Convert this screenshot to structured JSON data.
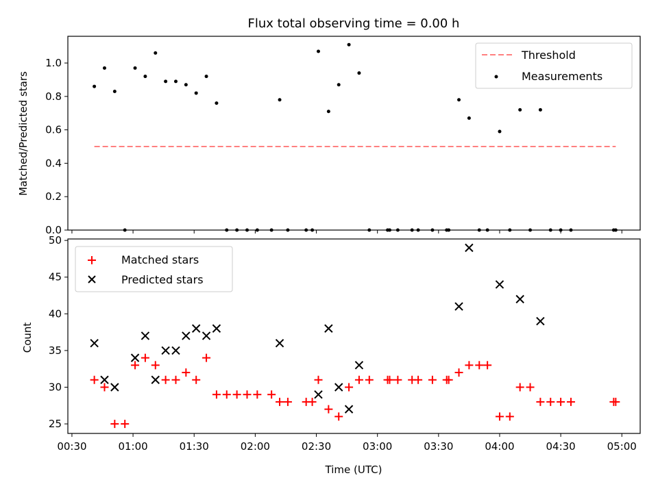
{
  "chart_data": [
    {
      "type": "scatter",
      "title": "Flux total observing time = 0.00 h",
      "ylabel": "Matched/Predicted stars",
      "ylim": [
        0,
        1.16
      ],
      "yticks": [
        "0.0",
        "0.2",
        "0.4",
        "0.6",
        "0.8",
        "1.0"
      ],
      "ytick_values": [
        0.0,
        0.2,
        0.4,
        0.6,
        0.8,
        1.0
      ],
      "legend_position": "top-right",
      "threshold": {
        "name": "Threshold",
        "value": 0.5,
        "x_range": [
          "00:41",
          "04:57"
        ],
        "color": "#ff7f7f"
      },
      "series": [
        {
          "name": "Measurements",
          "color": "#000000",
          "points": [
            [
              "00:41",
              0.86
            ],
            [
              "00:46",
              0.97
            ],
            [
              "00:51",
              0.83
            ],
            [
              "00:56",
              0.0
            ],
            [
              "01:01",
              0.97
            ],
            [
              "01:06",
              0.92
            ],
            [
              "01:11",
              1.06
            ],
            [
              "01:16",
              0.89
            ],
            [
              "01:21",
              0.89
            ],
            [
              "01:26",
              0.87
            ],
            [
              "01:31",
              0.82
            ],
            [
              "01:36",
              0.92
            ],
            [
              "01:41",
              0.76
            ],
            [
              "01:46",
              0.0
            ],
            [
              "01:51",
              0.0
            ],
            [
              "01:56",
              0.0
            ],
            [
              "02:01",
              0.0
            ],
            [
              "02:08",
              0.0
            ],
            [
              "02:12",
              0.78
            ],
            [
              "02:16",
              0.0
            ],
            [
              "02:25",
              0.0
            ],
            [
              "02:28",
              0.0
            ],
            [
              "02:31",
              1.07
            ],
            [
              "02:36",
              0.71
            ],
            [
              "02:41",
              0.87
            ],
            [
              "02:46",
              1.11
            ],
            [
              "02:51",
              0.94
            ],
            [
              "02:56",
              0.0
            ],
            [
              "03:05",
              0.0
            ],
            [
              "03:06",
              0.0
            ],
            [
              "03:10",
              0.0
            ],
            [
              "03:17",
              0.0
            ],
            [
              "03:20",
              0.0
            ],
            [
              "03:27",
              0.0
            ],
            [
              "03:34",
              0.0
            ],
            [
              "03:35",
              0.0
            ],
            [
              "03:40",
              0.78
            ],
            [
              "03:45",
              0.67
            ],
            [
              "03:50",
              0.0
            ],
            [
              "03:54",
              0.0
            ],
            [
              "04:00",
              0.59
            ],
            [
              "04:05",
              0.0
            ],
            [
              "04:10",
              0.72
            ],
            [
              "04:15",
              0.0
            ],
            [
              "04:20",
              0.72
            ],
            [
              "04:25",
              0.0
            ],
            [
              "04:30",
              0.0
            ],
            [
              "04:35",
              0.0
            ],
            [
              "04:56",
              0.0
            ],
            [
              "04:57",
              0.0
            ]
          ]
        }
      ]
    },
    {
      "type": "scatter",
      "xlabel": "Time (UTC)",
      "ylabel": "Count",
      "ylim": [
        23.7,
        50.2
      ],
      "yticks": [
        "25",
        "30",
        "35",
        "40",
        "45",
        "50"
      ],
      "ytick_values": [
        25,
        30,
        35,
        40,
        45,
        50
      ],
      "xticks": [
        "00:30",
        "01:00",
        "01:30",
        "02:00",
        "02:30",
        "03:00",
        "03:30",
        "04:00",
        "04:30",
        "05:00"
      ],
      "xtick_minutes": [
        30,
        60,
        90,
        120,
        150,
        180,
        210,
        240,
        270,
        300
      ],
      "xlim_minutes": [
        28,
        309
      ],
      "legend_position": "top-left",
      "series": [
        {
          "name": "Matched stars",
          "color": "#ff0000",
          "marker": "+",
          "points": [
            [
              "00:41",
              31
            ],
            [
              "00:46",
              30
            ],
            [
              "00:51",
              25
            ],
            [
              "00:56",
              25
            ],
            [
              "01:01",
              33
            ],
            [
              "01:06",
              34
            ],
            [
              "01:11",
              33
            ],
            [
              "01:16",
              31
            ],
            [
              "01:21",
              31
            ],
            [
              "01:26",
              32
            ],
            [
              "01:31",
              31
            ],
            [
              "01:36",
              34
            ],
            [
              "01:41",
              29
            ],
            [
              "01:46",
              29
            ],
            [
              "01:51",
              29
            ],
            [
              "01:56",
              29
            ],
            [
              "02:01",
              29
            ],
            [
              "02:08",
              29
            ],
            [
              "02:12",
              28
            ],
            [
              "02:16",
              28
            ],
            [
              "02:25",
              28
            ],
            [
              "02:28",
              28
            ],
            [
              "02:31",
              31
            ],
            [
              "02:36",
              27
            ],
            [
              "02:41",
              26
            ],
            [
              "02:46",
              30
            ],
            [
              "02:51",
              31
            ],
            [
              "02:56",
              31
            ],
            [
              "03:05",
              31
            ],
            [
              "03:06",
              31
            ],
            [
              "03:10",
              31
            ],
            [
              "03:17",
              31
            ],
            [
              "03:20",
              31
            ],
            [
              "03:27",
              31
            ],
            [
              "03:34",
              31
            ],
            [
              "03:35",
              31
            ],
            [
              "03:40",
              32
            ],
            [
              "03:45",
              33
            ],
            [
              "03:50",
              33
            ],
            [
              "03:54",
              33
            ],
            [
              "04:00",
              26
            ],
            [
              "04:05",
              26
            ],
            [
              "04:10",
              30
            ],
            [
              "04:15",
              30
            ],
            [
              "04:20",
              28
            ],
            [
              "04:25",
              28
            ],
            [
              "04:30",
              28
            ],
            [
              "04:35",
              28
            ],
            [
              "04:56",
              28
            ],
            [
              "04:57",
              28
            ]
          ]
        },
        {
          "name": "Predicted stars",
          "color": "#000000",
          "marker": "x",
          "points": [
            [
              "00:41",
              36
            ],
            [
              "00:46",
              31
            ],
            [
              "00:51",
              30
            ],
            [
              "01:01",
              34
            ],
            [
              "01:06",
              37
            ],
            [
              "01:11",
              31
            ],
            [
              "01:16",
              35
            ],
            [
              "01:21",
              35
            ],
            [
              "01:26",
              37
            ],
            [
              "01:31",
              38
            ],
            [
              "01:36",
              37
            ],
            [
              "01:41",
              38
            ],
            [
              "02:12",
              36
            ],
            [
              "02:31",
              29
            ],
            [
              "02:36",
              38
            ],
            [
              "02:41",
              30
            ],
            [
              "02:46",
              27
            ],
            [
              "02:51",
              33
            ],
            [
              "03:40",
              41
            ],
            [
              "03:45",
              49
            ],
            [
              "04:00",
              44
            ],
            [
              "04:10",
              42
            ],
            [
              "04:20",
              39
            ]
          ]
        }
      ]
    }
  ]
}
